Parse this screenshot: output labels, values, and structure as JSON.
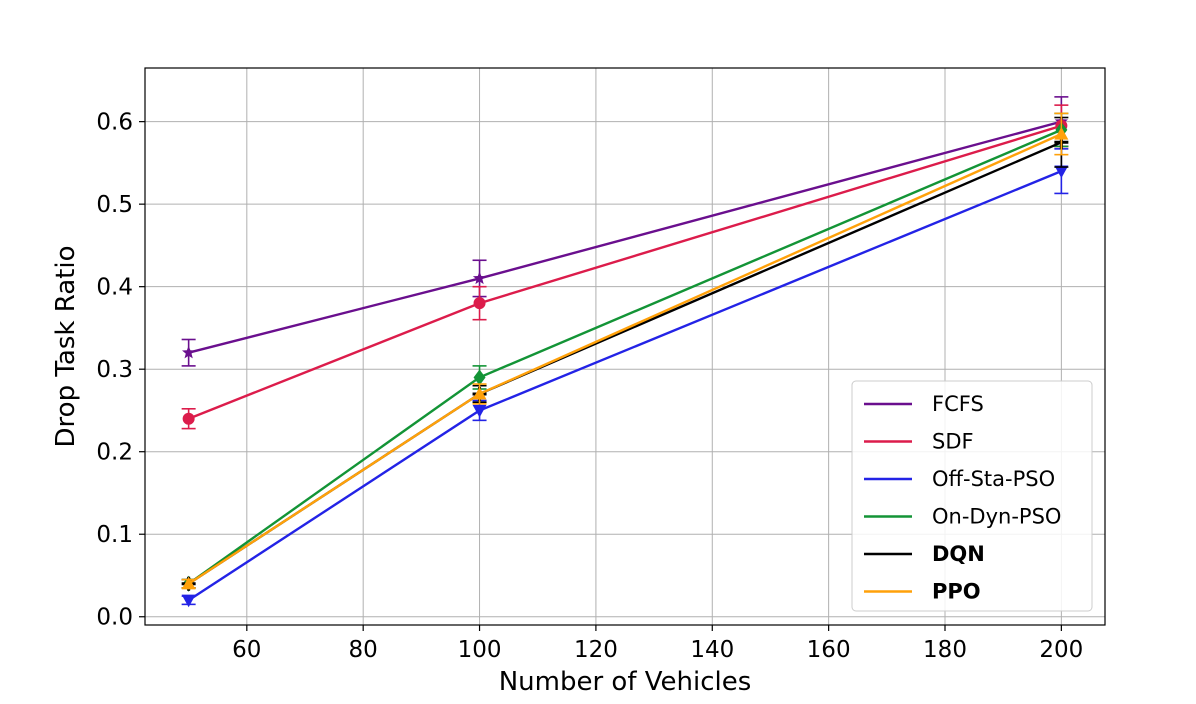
{
  "chart_data": {
    "type": "line",
    "xlabel": "Number of Vehicles",
    "ylabel": "Drop Task Ratio",
    "xlim": [
      42.5,
      207.5
    ],
    "ylim": [
      -0.01,
      0.665
    ],
    "xticks": [
      "60",
      "80",
      "100",
      "120",
      "140",
      "160",
      "180",
      "200"
    ],
    "yticks": [
      "0.0",
      "0.1",
      "0.2",
      "0.3",
      "0.4",
      "0.5",
      "0.6"
    ],
    "grid": true,
    "legend_position": "lower-right",
    "x": [
      50,
      100,
      200
    ],
    "series": [
      {
        "name": "FCFS",
        "color": "#6a0f8e",
        "marker": "star",
        "bold": false,
        "values": [
          0.32,
          0.41,
          0.6
        ],
        "errors": [
          0.016,
          0.022,
          0.03
        ]
      },
      {
        "name": "SDF",
        "color": "#dc1c4b",
        "marker": "circle",
        "bold": false,
        "values": [
          0.24,
          0.38,
          0.595
        ],
        "errors": [
          0.012,
          0.02,
          0.025
        ]
      },
      {
        "name": "Off-Sta-PSO",
        "color": "#2323e6",
        "marker": "triangle-down",
        "bold": false,
        "values": [
          0.02,
          0.25,
          0.54
        ],
        "errors": [
          0.005,
          0.012,
          0.027
        ]
      },
      {
        "name": "On-Dyn-PSO",
        "color": "#139436",
        "marker": "diamond",
        "bold": false,
        "values": [
          0.04,
          0.29,
          0.59
        ],
        "errors": [
          0.005,
          0.014,
          0.02
        ]
      },
      {
        "name": "DQN",
        "color": "#000000",
        "marker": "plus",
        "bold": true,
        "values": [
          0.04,
          0.27,
          0.575
        ],
        "errors": [
          0.005,
          0.01,
          0.03
        ]
      },
      {
        "name": "PPO",
        "color": "#ffa10a",
        "marker": "triangle-up",
        "bold": true,
        "values": [
          0.04,
          0.27,
          0.585
        ],
        "errors": [
          0.005,
          0.012,
          0.025
        ]
      }
    ]
  }
}
